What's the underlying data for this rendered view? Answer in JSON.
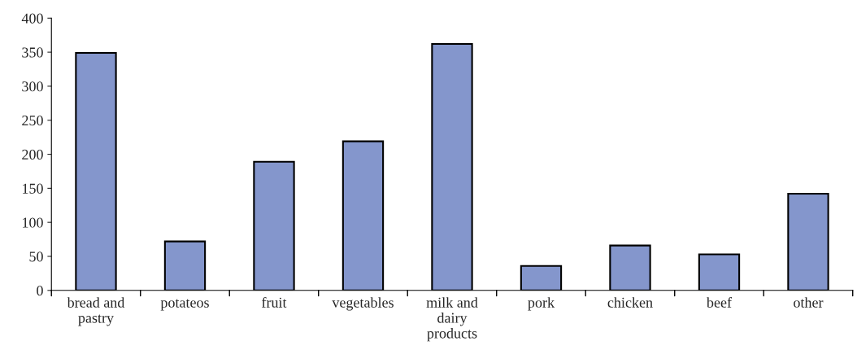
{
  "chart_data": {
    "type": "bar",
    "categories": [
      "bread and\npastry",
      "potateos",
      "fruit",
      "vegetables",
      "milk and\ndairy\nproducts",
      "pork",
      "chicken",
      "beef",
      "other"
    ],
    "values": [
      349,
      72,
      189,
      219,
      362,
      36,
      66,
      53,
      142
    ],
    "color": "#8496cc",
    "ylim": [
      0,
      400
    ],
    "yticks": [
      0,
      50,
      100,
      150,
      200,
      250,
      300,
      350,
      400
    ],
    "grid": false,
    "legend": false
  }
}
